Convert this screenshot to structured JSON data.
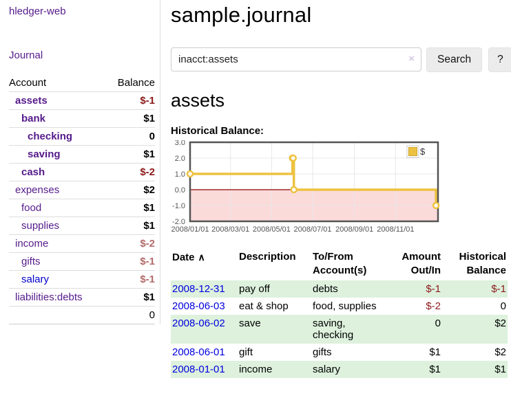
{
  "app": {
    "title": "hledger-web"
  },
  "sidebar": {
    "journal_link": "Journal",
    "headers": {
      "account": "Account",
      "balance": "Balance"
    },
    "rows": [
      {
        "account": "assets",
        "balance": "$-1"
      },
      {
        "account": "bank",
        "balance": "$1"
      },
      {
        "account": "checking",
        "balance": "0"
      },
      {
        "account": "saving",
        "balance": "$1"
      },
      {
        "account": "cash",
        "balance": "$-2"
      },
      {
        "account": "expenses",
        "balance": "$2"
      },
      {
        "account": "food",
        "balance": "$1"
      },
      {
        "account": "supplies",
        "balance": "$1"
      },
      {
        "account": "income",
        "balance": "$-2"
      },
      {
        "account": "gifts",
        "balance": "$-1"
      },
      {
        "account": "salary",
        "balance": "$-1"
      },
      {
        "account": "liabilities:debts",
        "balance": "$1"
      }
    ],
    "total": "0"
  },
  "header": {
    "title": "sample.journal"
  },
  "search": {
    "value": "inacct:assets",
    "clear_icon": "×",
    "button_label": "Search",
    "help_label": "?"
  },
  "register": {
    "heading": "assets",
    "chart_label": "Historical Balance:",
    "sort_caret": "∧",
    "table": {
      "headers": {
        "date": "Date",
        "description": "Description",
        "accounts": "To/From\nAccount(s)",
        "amount": "Amount\nOut/In",
        "balance": "Historical\nBalance"
      },
      "rows": [
        {
          "date": "2008-12-31",
          "description": "pay off",
          "accounts": "debts",
          "amount": "$-1",
          "balance": "$-1"
        },
        {
          "date": "2008-06-03",
          "description": "eat & shop",
          "accounts": "food, supplies",
          "amount": "$-2",
          "balance": "0"
        },
        {
          "date": "2008-06-02",
          "description": "save",
          "accounts": "saving,\nchecking",
          "amount": "0",
          "balance": "$2"
        },
        {
          "date": "2008-06-01",
          "description": "gift",
          "accounts": "gifts",
          "amount": "$1",
          "balance": "$2"
        },
        {
          "date": "2008-01-01",
          "description": "income",
          "accounts": "salary",
          "amount": "$1",
          "balance": "$1"
        }
      ]
    }
  },
  "chart_data": {
    "type": "line-step",
    "title": "Historical Balance",
    "series": [
      {
        "name": "$",
        "points": [
          [
            "2008/01/01",
            1
          ],
          [
            "2008/06/01",
            2
          ],
          [
            "2008/06/02",
            2
          ],
          [
            "2008/06/03",
            0
          ],
          [
            "2008/12/31",
            -1
          ]
        ]
      }
    ],
    "x_range": [
      "2008/01/01",
      "2009/01/03"
    ],
    "ylim": [
      -2,
      3
    ],
    "y_ticks": [
      3,
      2,
      1,
      0,
      -1,
      -2
    ],
    "x_ticks": [
      "2008/01/01",
      "2008/03/01",
      "2008/05/01",
      "2008/07/01",
      "2008/09/01",
      "2008/11/01"
    ],
    "legend_position": "top-right",
    "grid": true,
    "colors": {
      "series": "#edc240",
      "series_border": "#c9a52f",
      "negative_fill": "#fbdada",
      "zero_line": "#8b0000",
      "plot_border": "#545454",
      "gridline": "#e8e8e8"
    }
  }
}
